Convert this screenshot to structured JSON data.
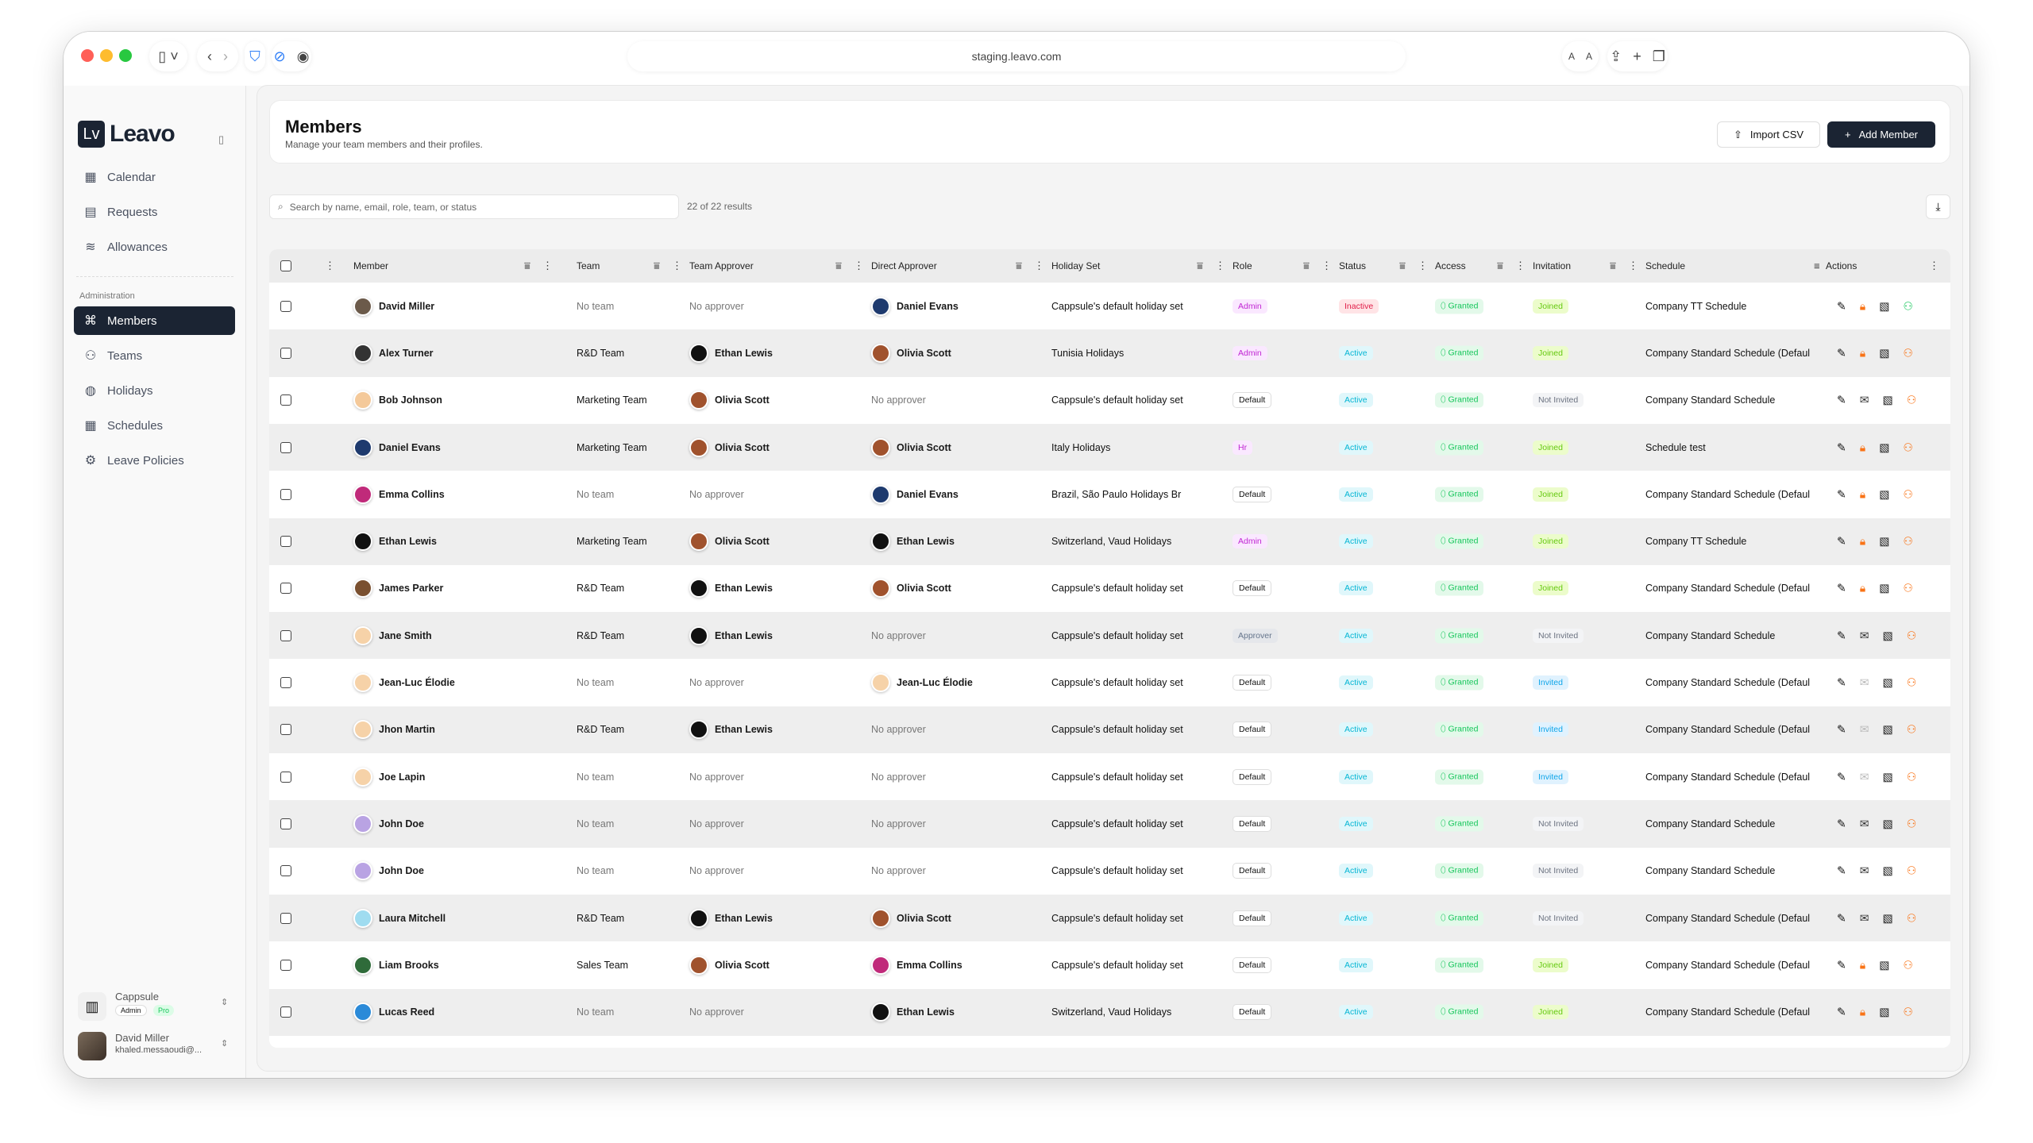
{
  "browser": {
    "url": "staging.leavo.com",
    "text_small": "A",
    "text_large": "A"
  },
  "sidebar": {
    "logo_mark": "Lv",
    "logo_name": "Leavo",
    "items": [
      {
        "label": "Calendar",
        "icon": "calendar-icon"
      },
      {
        "label": "Requests",
        "icon": "document-icon"
      },
      {
        "label": "Allowances",
        "icon": "database-icon"
      }
    ],
    "section_label": "Administration",
    "admin_items": [
      {
        "label": "Members",
        "icon": "command-icon",
        "active": true
      },
      {
        "label": "Teams",
        "icon": "users-icon"
      },
      {
        "label": "Holidays",
        "icon": "globe-icon"
      },
      {
        "label": "Schedules",
        "icon": "calendar-icon"
      },
      {
        "label": "Leave Policies",
        "icon": "gear-icon"
      }
    ],
    "org": {
      "name": "Cappsule",
      "role": "Admin",
      "plan": "Pro"
    },
    "user": {
      "name": "David Miller",
      "email": "khaled.messaoudi@..."
    }
  },
  "header": {
    "title": "Members",
    "subtitle": "Manage your team members and their profiles.",
    "import_label": "Import CSV",
    "add_label": "Add Member"
  },
  "search": {
    "placeholder": "Search by name, email, role, team, or status",
    "results": "22 of 22 results"
  },
  "columns": [
    "Member",
    "Team",
    "Team Approver",
    "Direct Approver",
    "Holiday Set",
    "Role",
    "Status",
    "Access",
    "Invitation",
    "Schedule",
    "Actions"
  ],
  "colors": {
    "accent": "#1b2433",
    "admin": "#c026d3",
    "active": "#06b6d4",
    "inactive": "#e11d48",
    "granted": "#16c65b",
    "joined": "#65c90f",
    "invited": "#0ea5e9",
    "danger_icon": "#f97316"
  },
  "rows": [
    {
      "name": "David Miller",
      "team": "No team",
      "team_approver": "No approver",
      "direct_approver": "Daniel Evans",
      "holiday": "Cappsule's default holiday set",
      "role": "Admin",
      "status": "Inactive",
      "access": "Granted",
      "invitation": "Joined",
      "schedule": "Company TT Schedule"
    },
    {
      "name": "Alex Turner",
      "team": "R&D Team",
      "team_approver": "Ethan Lewis",
      "direct_approver": "Olivia Scott",
      "holiday": "Tunisia Holidays",
      "role": "Admin",
      "status": "Active",
      "access": "Granted",
      "invitation": "Joined",
      "schedule": "Company Standard Schedule (Defaul"
    },
    {
      "name": "Bob Johnson",
      "team": "Marketing Team",
      "team_approver": "Olivia Scott",
      "direct_approver": "No approver",
      "holiday": "Cappsule's default holiday set",
      "role": "Default",
      "status": "Active",
      "access": "Granted",
      "invitation": "Not Invited",
      "schedule": "Company Standard Schedule"
    },
    {
      "name": "Daniel Evans",
      "team": "Marketing Team",
      "team_approver": "Olivia Scott",
      "direct_approver": "Olivia Scott",
      "holiday": "Italy Holidays",
      "role": "Hr",
      "status": "Active",
      "access": "Granted",
      "invitation": "Joined",
      "schedule": "Schedule test"
    },
    {
      "name": "Emma Collins",
      "team": "No team",
      "team_approver": "No approver",
      "direct_approver": "Daniel Evans",
      "holiday": "Brazil, São Paulo Holidays Br",
      "role": "Default",
      "status": "Active",
      "access": "Granted",
      "invitation": "Joined",
      "schedule": "Company Standard Schedule (Defaul"
    },
    {
      "name": "Ethan Lewis",
      "team": "Marketing Team",
      "team_approver": "Olivia Scott",
      "direct_approver": "Ethan Lewis",
      "holiday": "Switzerland, Vaud Holidays",
      "role": "Admin",
      "status": "Active",
      "access": "Granted",
      "invitation": "Joined",
      "schedule": "Company TT Schedule"
    },
    {
      "name": "James Parker",
      "team": "R&D Team",
      "team_approver": "Ethan Lewis",
      "direct_approver": "Olivia Scott",
      "holiday": "Cappsule's default holiday set",
      "role": "Default",
      "status": "Active",
      "access": "Granted",
      "invitation": "Joined",
      "schedule": "Company Standard Schedule (Defaul"
    },
    {
      "name": "Jane Smith",
      "team": "R&D Team",
      "team_approver": "Ethan Lewis",
      "direct_approver": "No approver",
      "holiday": "Cappsule's default holiday set",
      "role": "Approver",
      "status": "Active",
      "access": "Granted",
      "invitation": "Not Invited",
      "schedule": "Company Standard Schedule"
    },
    {
      "name": "Jean-Luc Élodie",
      "team": "No team",
      "team_approver": "No approver",
      "direct_approver": "Jean-Luc Élodie",
      "holiday": "Cappsule's default holiday set",
      "role": "Default",
      "status": "Active",
      "access": "Granted",
      "invitation": "Invited",
      "schedule": "Company Standard Schedule (Defaul"
    },
    {
      "name": "Jhon Martin",
      "team": "R&D Team",
      "team_approver": "Ethan Lewis",
      "direct_approver": "No approver",
      "holiday": "Cappsule's default holiday set",
      "role": "Default",
      "status": "Active",
      "access": "Granted",
      "invitation": "Invited",
      "schedule": "Company Standard Schedule (Defaul"
    },
    {
      "name": "Joe Lapin",
      "team": "No team",
      "team_approver": "No approver",
      "direct_approver": "No approver",
      "holiday": "Cappsule's default holiday set",
      "role": "Default",
      "status": "Active",
      "access": "Granted",
      "invitation": "Invited",
      "schedule": "Company Standard Schedule (Defaul"
    },
    {
      "name": "John Doe",
      "team": "No team",
      "team_approver": "No approver",
      "direct_approver": "No approver",
      "holiday": "Cappsule's default holiday set",
      "role": "Default",
      "status": "Active",
      "access": "Granted",
      "invitation": "Not Invited",
      "schedule": "Company Standard Schedule"
    },
    {
      "name": "John Doe",
      "team": "No team",
      "team_approver": "No approver",
      "direct_approver": "No approver",
      "holiday": "Cappsule's default holiday set",
      "role": "Default",
      "status": "Active",
      "access": "Granted",
      "invitation": "Not Invited",
      "schedule": "Company Standard Schedule"
    },
    {
      "name": "Laura Mitchell",
      "team": "R&D Team",
      "team_approver": "Ethan Lewis",
      "direct_approver": "Olivia Scott",
      "holiday": "Cappsule's default holiday set",
      "role": "Default",
      "status": "Active",
      "access": "Granted",
      "invitation": "Not Invited",
      "schedule": "Company Standard Schedule (Defaul"
    },
    {
      "name": "Liam Brooks",
      "team": "Sales Team",
      "team_approver": "Olivia Scott",
      "direct_approver": "Emma Collins",
      "holiday": "Cappsule's default holiday set",
      "role": "Default",
      "status": "Active",
      "access": "Granted",
      "invitation": "Joined",
      "schedule": "Company Standard Schedule (Defaul"
    },
    {
      "name": "Lucas Reed",
      "team": "No team",
      "team_approver": "No approver",
      "direct_approver": "Ethan Lewis",
      "holiday": "Switzerland, Vaud Holidays",
      "role": "Default",
      "status": "Active",
      "access": "Granted",
      "invitation": "Joined",
      "schedule": "Company Standard Schedule (Defaul"
    }
  ]
}
